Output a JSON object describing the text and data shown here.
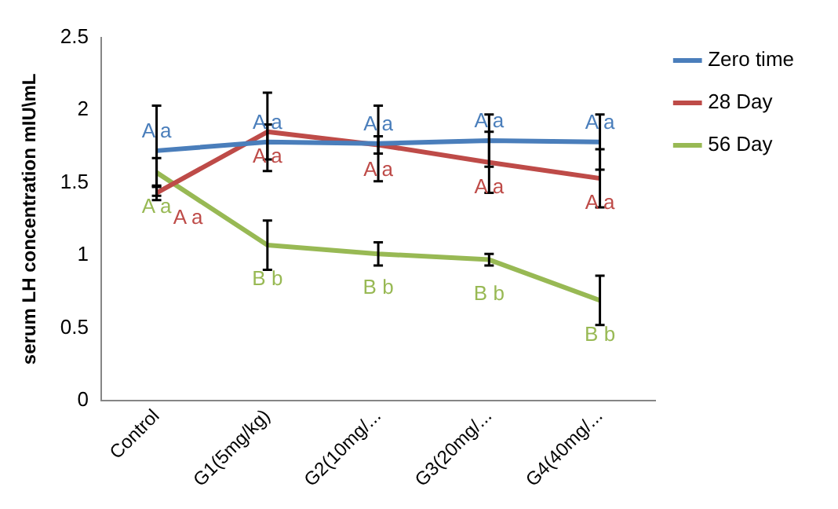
{
  "chart_data": {
    "type": "line",
    "ylabel": "serum LH concentration mIU\\mL",
    "categories": [
      "Control",
      "G1(5mg/kg)",
      "G2(10mg/...",
      "G3(20mg/...",
      "G4(40mg/..."
    ],
    "series": [
      {
        "name": "Zero time",
        "color": "#4a7ebb",
        "values": [
          1.72,
          1.78,
          1.77,
          1.79,
          1.78
        ],
        "errors": [
          0.31,
          0.12,
          0.26,
          0.18,
          0.19
        ],
        "value_labels": [
          "A a",
          "A a",
          "A a",
          "A a",
          "A a"
        ]
      },
      {
        "name": "28 Day",
        "color": "#be4b48",
        "values": [
          1.43,
          1.85,
          1.76,
          1.64,
          1.53
        ],
        "errors": [
          0.05,
          0.27,
          0.06,
          0.21,
          0.2
        ],
        "value_labels": [
          "A a",
          "A a",
          "A a",
          "A a",
          "A a"
        ]
      },
      {
        "name": "56 Day",
        "color": "#98b954",
        "values": [
          1.57,
          1.07,
          1.01,
          0.97,
          0.69
        ],
        "errors": [
          0.1,
          0.17,
          0.08,
          0.04,
          0.17
        ],
        "value_labels": [
          "A a",
          "B b",
          "B b",
          "B b",
          "B b"
        ]
      }
    ],
    "ylim": [
      0,
      2.5
    ],
    "yticks": [
      0,
      0.5,
      1,
      1.5,
      2,
      2.5
    ],
    "grid": false,
    "legend": "right",
    "marker": "none",
    "line_style": "solid"
  }
}
